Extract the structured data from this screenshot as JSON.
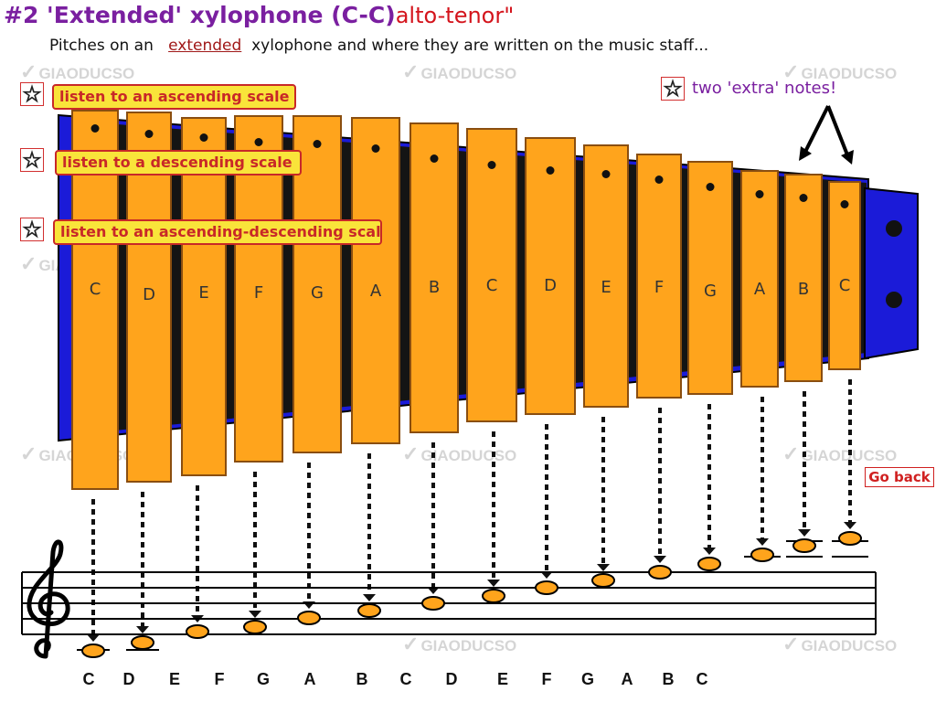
{
  "header": {
    "title": "#2 'Extended' xylophone (C-C)",
    "title_sub": "alto-tenor\"",
    "subtitle_pre": "Pitches on an",
    "subtitle_link": "extended",
    "subtitle_post": "xylophone and where they are written on the music staff..."
  },
  "buttons": {
    "ascending": "listen to an ascending scale",
    "descending": "listen to a descending scale",
    "asc_desc": "listen to an ascending-descending scale",
    "extra_notes": "two 'extra' notes!",
    "go_back": "Go back"
  },
  "watermark": "GIAODUCSO",
  "star_icon": "☆",
  "bars": [
    {
      "note": "C"
    },
    {
      "note": "D"
    },
    {
      "note": "E"
    },
    {
      "note": "F"
    },
    {
      "note": "G"
    },
    {
      "note": "A"
    },
    {
      "note": "B"
    },
    {
      "note": "C"
    },
    {
      "note": "D"
    },
    {
      "note": "E"
    },
    {
      "note": "F"
    },
    {
      "note": "G"
    },
    {
      "note": "A"
    },
    {
      "note": "B"
    },
    {
      "note": "C"
    }
  ],
  "staff_notes": [
    "C",
    "D",
    "E",
    "F",
    "G",
    "A",
    "B",
    "C",
    "D",
    "E",
    "F",
    "G",
    "A",
    "B",
    "C"
  ],
  "colors": {
    "bar": "#ffa41c",
    "bar_border": "#8a4e10",
    "frame": "#1b1bd8",
    "title": "#7a1fa0",
    "accent_red": "#d4141c",
    "star": "#f4e21a"
  }
}
